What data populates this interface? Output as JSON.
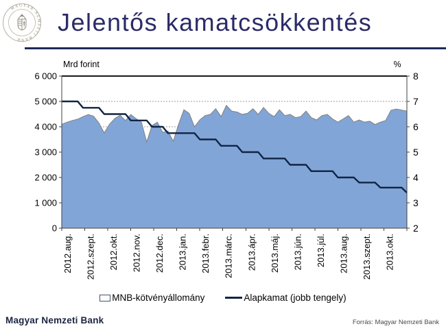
{
  "header": {
    "title": "Jelentős kamatcsökkentés",
    "logo_text": "MAGYAR NEMZETI BANK"
  },
  "chart_data": {
    "type": "area",
    "subtype": "weekly area series with step line on secondary axis",
    "left_axis": {
      "title": "Mrd forint",
      "min": 0,
      "max": 6000,
      "tick_step": 1000,
      "tick_labels": [
        "0",
        "1 000",
        "2 000",
        "3 000",
        "4 000",
        "5 000",
        "6 000"
      ]
    },
    "right_axis": {
      "title": "%",
      "min": 2,
      "max": 8,
      "tick_step": 1,
      "tick_labels": [
        "2",
        "3",
        "4",
        "5",
        "6",
        "7",
        "8"
      ]
    },
    "x_tick_labels": [
      "2012.aug.",
      "2012.szept.",
      "2012.okt.",
      "2012.nov.",
      "2012.dec.",
      "2013.jan.",
      "2013.febr.",
      "2013.márc.",
      "2013.ápr.",
      "2013.máj.",
      "2013.jún.",
      "2013.júl.",
      "2013.aug.",
      "2013.szept.",
      "2013.okt."
    ],
    "grid": "dashed horizontal gridlines",
    "legend_position": "bottom center",
    "series": [
      {
        "name": "MNB-kötvényállomány",
        "type": "area",
        "axis": "left",
        "fill": "#82a5d7",
        "stroke": "#7f7f7f",
        "values": [
          4100,
          4180,
          4250,
          4300,
          4400,
          4480,
          4420,
          4150,
          3760,
          4100,
          4330,
          4450,
          4250,
          4480,
          4320,
          4180,
          3400,
          4050,
          4180,
          3780,
          3830,
          3430,
          4090,
          4670,
          4530,
          4000,
          4270,
          4440,
          4490,
          4710,
          4400,
          4840,
          4620,
          4580,
          4490,
          4530,
          4710,
          4490,
          4760,
          4530,
          4400,
          4670,
          4440,
          4490,
          4360,
          4400,
          4620,
          4360,
          4270,
          4440,
          4490,
          4310,
          4180,
          4310,
          4440,
          4180,
          4270,
          4180,
          4220,
          4090,
          4180,
          4250,
          4650,
          4700,
          4660,
          4620
        ]
      },
      {
        "name": "Alapkamat (jobb tengely)",
        "type": "line",
        "axis": "right",
        "color": "#0f2444",
        "values": [
          7,
          7,
          7,
          7,
          6.75,
          6.75,
          6.75,
          6.75,
          6.5,
          6.5,
          6.5,
          6.5,
          6.5,
          6.25,
          6.25,
          6.25,
          6.25,
          6,
          6,
          6,
          5.75,
          5.75,
          5.75,
          5.75,
          5.75,
          5.75,
          5.5,
          5.5,
          5.5,
          5.5,
          5.25,
          5.25,
          5.25,
          5.25,
          5,
          5,
          5,
          5,
          4.75,
          4.75,
          4.75,
          4.75,
          4.75,
          4.5,
          4.5,
          4.5,
          4.5,
          4.25,
          4.25,
          4.25,
          4.25,
          4.25,
          4,
          4,
          4,
          4,
          3.8,
          3.8,
          3.8,
          3.8,
          3.6,
          3.6,
          3.6,
          3.6,
          3.6,
          3.4
        ]
      }
    ]
  },
  "legend": {
    "items": [
      {
        "label": "MNB-kötvényállomány",
        "swatch": "area"
      },
      {
        "label": "Alapkamat (jobb tengely)",
        "swatch": "line"
      }
    ]
  },
  "footer": {
    "left": "Magyar Nemzeti Bank",
    "source": "Forrás: Magyar Nemzeti Bank"
  },
  "colors": {
    "title": "#2b2b68",
    "title_rule": "#1c2a58",
    "area_fill": "#82a5d7",
    "area_stroke": "#7f7f7f",
    "rate_line": "#0f2444",
    "gridline": "#999999",
    "axis": "#404040"
  }
}
